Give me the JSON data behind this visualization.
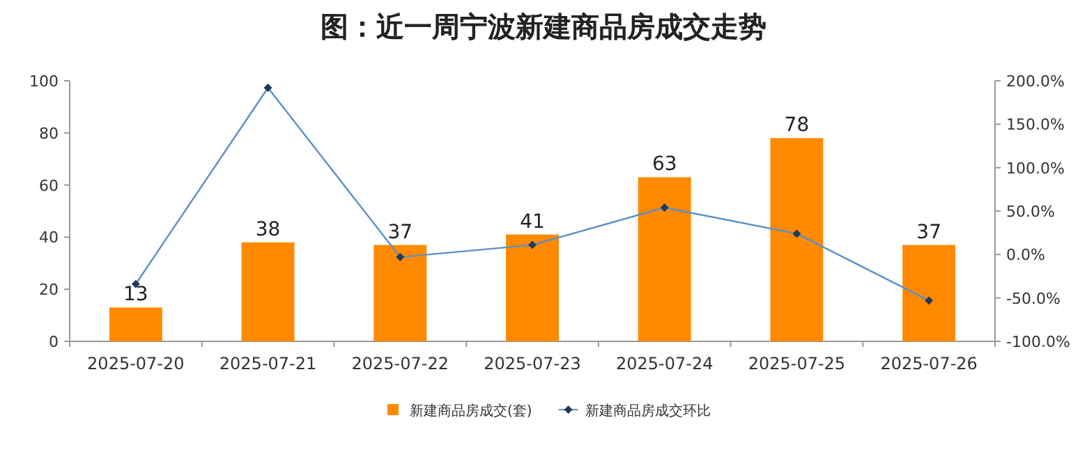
{
  "chart_data": {
    "type": "bar",
    "title": "图：近一周宁波新建商品房成交走势",
    "categories": [
      "2025-07-20",
      "2025-07-21",
      "2025-07-22",
      "2025-07-23",
      "2025-07-24",
      "2025-07-25",
      "2025-07-26"
    ],
    "series": [
      {
        "name": "新建商品房成交(套)",
        "color": "#ff8a00",
        "values": [
          13,
          38,
          37,
          41,
          63,
          78,
          37
        ],
        "value_labels": [
          "13",
          "38",
          "37",
          "41",
          "63",
          "78",
          "37"
        ]
      },
      {
        "name": "新建商品房成交环比",
        "type": "line",
        "axis": "y2",
        "color": "#5b8fc7",
        "marker": "diamond",
        "values": [
          -34,
          192,
          -3,
          11,
          54,
          24,
          -53
        ]
      }
    ],
    "ylim": [
      0,
      100
    ],
    "yticks": [
      0,
      20,
      40,
      60,
      80,
      100
    ],
    "y2lim": [
      -100,
      200
    ],
    "y2ticks": [
      {
        "value": -100,
        "label": "-100.0%"
      },
      {
        "value": -50,
        "label": "-50.0%"
      },
      {
        "value": 0,
        "label": "0.0%"
      },
      {
        "value": 50,
        "label": "50.0%"
      },
      {
        "value": 100,
        "label": "100.0%"
      },
      {
        "value": 150,
        "label": "150.0%"
      },
      {
        "value": 200,
        "label": "200.0%"
      }
    ],
    "grid": false,
    "legend": "bottom"
  }
}
